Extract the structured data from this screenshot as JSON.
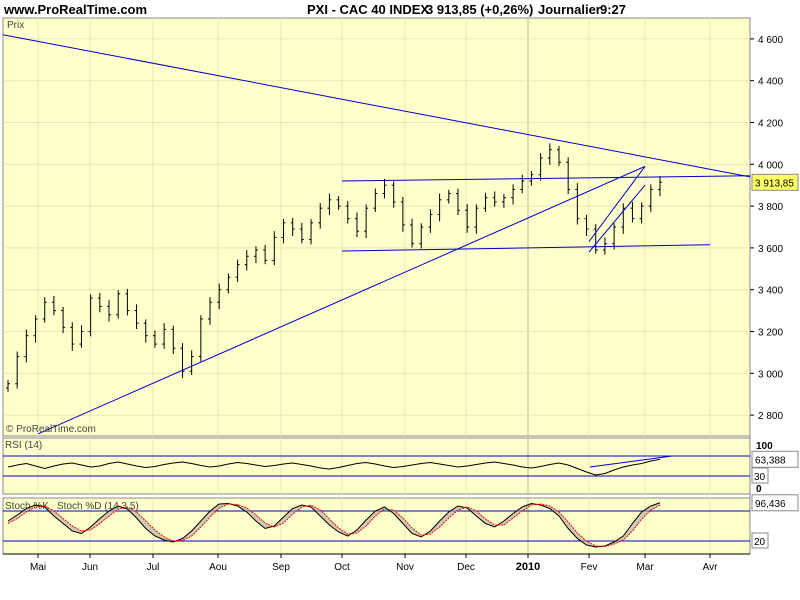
{
  "header": {
    "site": "www.ProRealTime.com",
    "instrument": "PXI - CAC 40 INDEX",
    "quote": "3 913,85 (+0,26%)",
    "period": "Journalier",
    "time": "9:27"
  },
  "watermark": "© ProRealTime.com",
  "colors": {
    "panel_bg": "#ffffcc",
    "grid": "#e7e7b0",
    "bars": "#000000",
    "trendlines": "#0000cc",
    "last_price_tag": "#ffff66",
    "stoch_d": "#ff0000"
  },
  "chart_data": [
    {
      "type": "ohlc",
      "panel": "price",
      "title": "Prix",
      "ylim": [
        2700,
        4700
      ],
      "yticks": [
        2800,
        3000,
        3200,
        3400,
        3600,
        3800,
        4000,
        4200,
        4400,
        4600
      ],
      "ytick_labels": [
        "2 800",
        "3 000",
        "3 200",
        "3 400",
        "3 600",
        "3 800",
        "4 000",
        "4 200",
        "4 400",
        "4 600"
      ],
      "last_value_label": "3 913,85",
      "last_value": 3913.85,
      "months": [
        "Mai",
        "Jun",
        "Jul",
        "Aou",
        "Sep",
        "Oct",
        "Nov",
        "Dec",
        "2010",
        "Fev",
        "Mar",
        "Avr"
      ],
      "closes": [
        2950,
        3080,
        3180,
        3260,
        3340,
        3300,
        3220,
        3140,
        3200,
        3360,
        3320,
        3280,
        3380,
        3300,
        3240,
        3180,
        3140,
        3210,
        3120,
        3010,
        3080,
        3260,
        3340,
        3400,
        3460,
        3520,
        3560,
        3590,
        3540,
        3650,
        3720,
        3690,
        3640,
        3720,
        3790,
        3830,
        3800,
        3740,
        3680,
        3790,
        3860,
        3900,
        3820,
        3710,
        3620,
        3700,
        3760,
        3830,
        3860,
        3780,
        3700,
        3790,
        3840,
        3820,
        3840,
        3880,
        3920,
        3950,
        4030,
        4070,
        4010,
        3880,
        3740,
        3690,
        3590,
        3620,
        3700,
        3790,
        3740,
        3800,
        3880,
        3914
      ],
      "trendlines": [
        {
          "from": [
            "start",
            4620
          ],
          "to": [
            "end",
            3940
          ]
        },
        {
          "from": [
            "Mai",
            2710
          ],
          "to": [
            "Mar",
            3990
          ]
        },
        {
          "from": [
            "Oct",
            3920
          ],
          "to": [
            "end",
            3945
          ]
        },
        {
          "from": [
            "Oct",
            3585
          ],
          "to": [
            "Avr",
            3615
          ]
        },
        {
          "from": [
            "Fev",
            3580
          ],
          "to": [
            "Mar",
            3900
          ]
        },
        {
          "from": [
            "Fev",
            3630
          ],
          "to": [
            "Mar",
            3990
          ]
        }
      ]
    },
    {
      "type": "line",
      "panel": "rsi",
      "title": "RSI (14)",
      "ylim": [
        0,
        100
      ],
      "yticks": [
        100,
        30,
        0
      ],
      "ytick_labels": [
        "100",
        "30",
        "0"
      ],
      "levels": [
        70,
        30
      ],
      "last_value_label": "63,388",
      "last_value": 63.388,
      "values": [
        48,
        52,
        55,
        50,
        45,
        50,
        54,
        56,
        52,
        48,
        50,
        55,
        58,
        54,
        50,
        47,
        49,
        53,
        56,
        58,
        55,
        51,
        48,
        50,
        54,
        57,
        55,
        52,
        49,
        51,
        54,
        56,
        53,
        50,
        46,
        44,
        47,
        51,
        55,
        57,
        54,
        50,
        47,
        49,
        52,
        55,
        57,
        54,
        51,
        48,
        50,
        53,
        56,
        58,
        55,
        52,
        48,
        46,
        49,
        53,
        56,
        52,
        45,
        38,
        32,
        35,
        42,
        48,
        52,
        55,
        60,
        63.388
      ]
    },
    {
      "type": "line",
      "panel": "stochastic",
      "title": "Stoch %K",
      "title2": "Stoch %D (14 3 5)",
      "ylim": [
        0,
        100
      ],
      "levels": [
        80,
        20
      ],
      "ytick_labels": [
        "20"
      ],
      "last_value_label": "96,436",
      "last_value": 96.436,
      "k_values": [
        60,
        72,
        85,
        92,
        88,
        70,
        55,
        40,
        35,
        48,
        65,
        80,
        90,
        84,
        66,
        45,
        30,
        22,
        18,
        25,
        40,
        60,
        80,
        94,
        95,
        90,
        78,
        60,
        45,
        50,
        68,
        85,
        92,
        88,
        70,
        52,
        38,
        30,
        42,
        62,
        80,
        88,
        75,
        55,
        35,
        28,
        40,
        60,
        78,
        90,
        86,
        70,
        55,
        48,
        60,
        75,
        88,
        95,
        92,
        85,
        70,
        45,
        25,
        12,
        8,
        10,
        18,
        30,
        55,
        78,
        90,
        96.436
      ],
      "d_values": [
        55,
        65,
        78,
        88,
        90,
        80,
        65,
        50,
        40,
        42,
        55,
        70,
        84,
        88,
        78,
        60,
        42,
        28,
        20,
        21,
        30,
        48,
        68,
        86,
        94,
        93,
        86,
        72,
        56,
        48,
        56,
        74,
        88,
        92,
        82,
        64,
        46,
        34,
        36,
        50,
        70,
        84,
        82,
        66,
        46,
        32,
        34,
        48,
        66,
        82,
        88,
        80,
        64,
        52,
        52,
        66,
        80,
        92,
        94,
        90,
        78,
        58,
        36,
        20,
        10,
        9,
        14,
        22,
        40,
        64,
        82,
        92
      ]
    }
  ]
}
